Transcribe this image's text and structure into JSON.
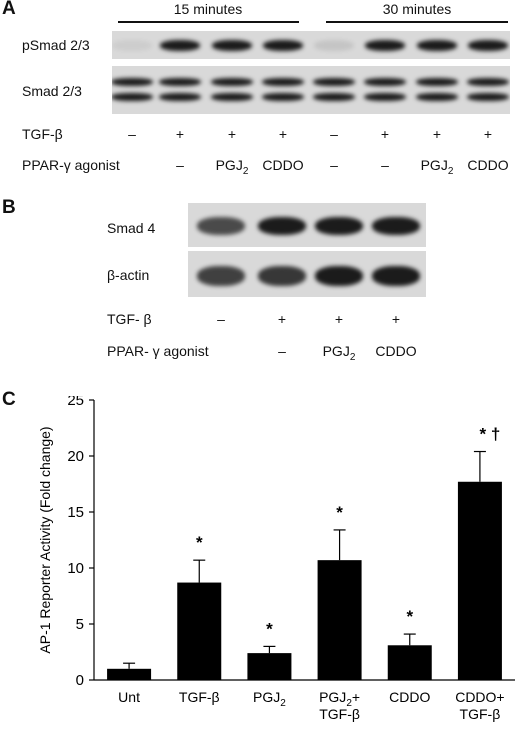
{
  "panel_a": {
    "letter": "A",
    "time_labels": [
      "15 minutes",
      "30 minutes"
    ],
    "row_labels": [
      "pSmad 2/3",
      "Smad 2/3"
    ],
    "tgf_label": "TGF-β",
    "agonist_label": "PPAR-γ agonist",
    "tgf_values": [
      "–",
      "+",
      "+",
      "+",
      "–",
      "+",
      "+",
      "+"
    ],
    "agonist_values": [
      "",
      "–",
      "PGJ",
      "CDDO",
      "–",
      "–",
      "PGJ",
      "CDDO"
    ],
    "agonist_subs": [
      "",
      "",
      "2",
      "",
      "",
      "",
      "2",
      ""
    ],
    "psmad_intensity": [
      0,
      1,
      1,
      1,
      0.1,
      1,
      1,
      1
    ],
    "smad_intensity": [
      1,
      1,
      1,
      1,
      1,
      1,
      1,
      1
    ]
  },
  "panel_b": {
    "letter": "B",
    "row_labels": [
      "Smad 4",
      "β-actin"
    ],
    "tgf_label": "TGF- β",
    "agonist_label": "PPAR- γ agonist",
    "tgf_values": [
      "–",
      "+",
      "+",
      "+"
    ],
    "agonist_values": [
      "",
      "–",
      "PGJ",
      "CDDO"
    ],
    "agonist_subs": [
      "",
      "",
      "2",
      ""
    ],
    "smad4_intensity": [
      0.75,
      1,
      1,
      1
    ],
    "actin_intensity": [
      0.8,
      0.85,
      1,
      1
    ]
  },
  "panel_c": {
    "letter": "C",
    "chart_data": {
      "type": "bar",
      "categories": [
        "Unt",
        "TGF-β",
        "PGJ2",
        "PGJ2+ TGF-β",
        "CDDO",
        "CDDO+ TGF-β"
      ],
      "category_lines": [
        [
          "Unt"
        ],
        [
          "TGF-β"
        ],
        [
          "PGJ|2"
        ],
        [
          "PGJ|2|+",
          "TGF-β"
        ],
        [
          "CDDO"
        ],
        [
          "CDDO+",
          "TGF-β"
        ]
      ],
      "values": [
        1.0,
        8.7,
        2.4,
        10.7,
        3.1,
        17.7
      ],
      "errors": [
        0.5,
        2.0,
        0.6,
        2.7,
        1.0,
        2.7
      ],
      "annotations": [
        "",
        "*",
        "*",
        "*",
        "*",
        "* †"
      ],
      "ylabel": "AP-1 Reporter Activity (Fold change)",
      "xlabel": "",
      "ylim": [
        0,
        25
      ],
      "yticks": [
        0,
        5,
        10,
        15,
        20,
        25
      ],
      "bar_color": "#000000",
      "grid": false
    }
  }
}
